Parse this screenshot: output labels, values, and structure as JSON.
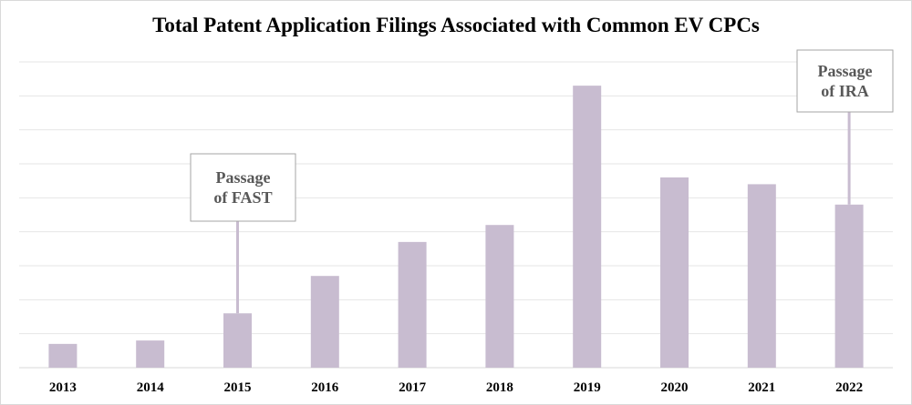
{
  "chart_data": {
    "type": "bar",
    "title": "Total Patent Application Filings Associated with Common EV CPCs",
    "categories": [
      "2013",
      "2014",
      "2015",
      "2016",
      "2017",
      "2018",
      "2019",
      "2020",
      "2021",
      "2022"
    ],
    "values": [
      7,
      8,
      16,
      27,
      37,
      42,
      83,
      56,
      54,
      48
    ],
    "ylim": [
      0,
      90
    ],
    "y_ticks_labeled": false,
    "grid": true,
    "bar_color": "#c8bcd0",
    "grid_color": "#e6e6e6",
    "annotations": [
      {
        "category": "2015",
        "lines": [
          "Passage",
          "of FAST"
        ]
      },
      {
        "category": "2022",
        "lines": [
          "Passage",
          "of IRA"
        ]
      }
    ]
  }
}
